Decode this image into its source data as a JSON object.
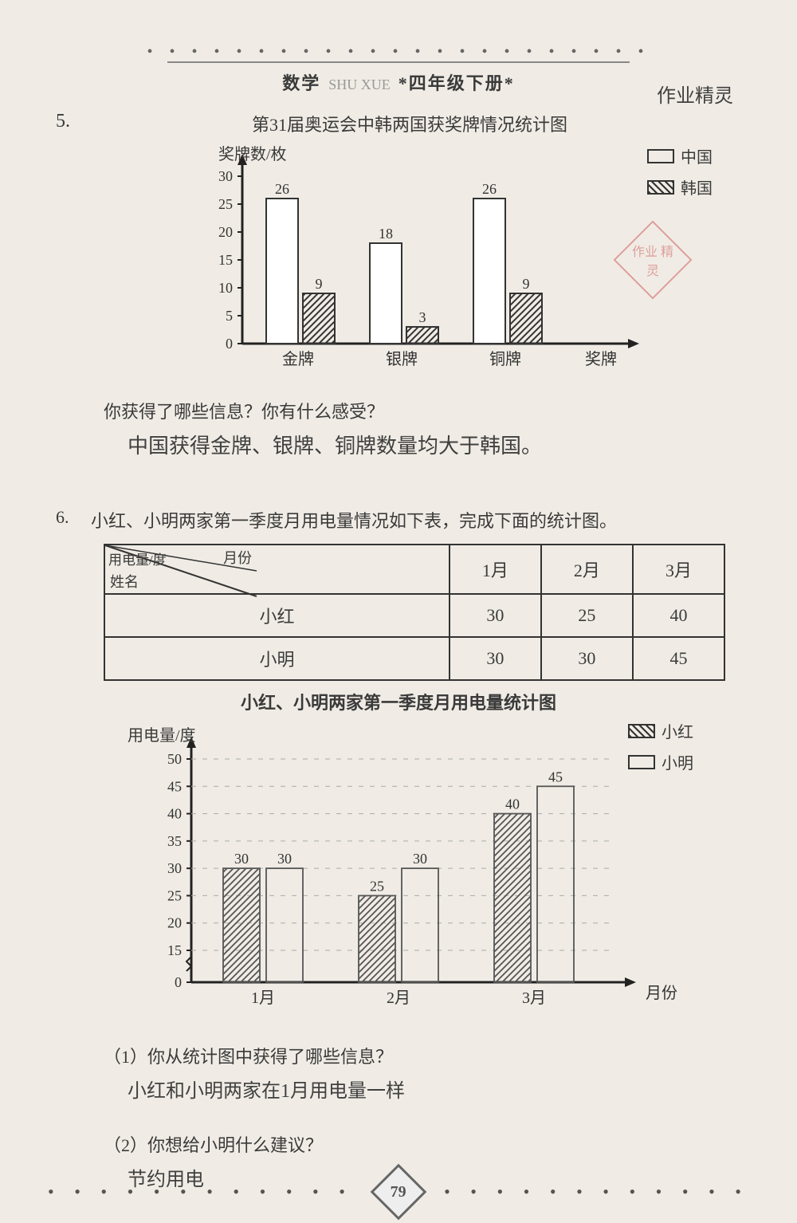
{
  "header": {
    "subject": "数学",
    "subject_pinyin": "SHU XUE",
    "grade": "*四年级下册*",
    "top_annotation": "作业精灵"
  },
  "q5": {
    "number": "5.",
    "title": "第31届奥运会中韩两国获奖牌情况统计图",
    "y_axis_label": "奖牌数/枚",
    "y_ticks": [
      "0",
      "5",
      "10",
      "15",
      "20",
      "25",
      "30"
    ],
    "y_max": 30,
    "categories": [
      "金牌",
      "银牌",
      "铜牌",
      "奖牌"
    ],
    "series": [
      {
        "name": "中国",
        "values": [
          26,
          18,
          26
        ],
        "fill": "#ffffff",
        "hatched": false
      },
      {
        "name": "韩国",
        "values": [
          9,
          3,
          9
        ],
        "fill": "hatched",
        "hatched": true
      }
    ],
    "bar_colors": {
      "china": "#ffffff",
      "korea_hatched": true
    },
    "question": "你获得了哪些信息？你有什么感受？",
    "answer": "中国获得金牌、银牌、铜牌数量均大于韩国。",
    "legend": [
      {
        "swatch": "plain",
        "label": "中国"
      },
      {
        "swatch": "hatched",
        "label": "韩国"
      }
    ],
    "stamp_text": "作业\n精灵"
  },
  "q6": {
    "number": "6.",
    "intro": "小红、小明两家第一季度月用电量情况如下表，完成下面的统计图。",
    "table": {
      "corner_top": "月份",
      "corner_left": "姓名",
      "corner_mid": "用电量/度",
      "cols": [
        "1月",
        "2月",
        "3月"
      ],
      "rows": [
        {
          "name": "小红",
          "values": [
            "30",
            "25",
            "40"
          ]
        },
        {
          "name": "小明",
          "values": [
            "30",
            "30",
            "45"
          ]
        }
      ]
    },
    "chart": {
      "title": "小红、小明两家第一季度月用电量统计图",
      "y_axis_label": "用电量/度",
      "x_axis_label": "月份",
      "y_ticks": [
        "0",
        "15",
        "20",
        "25",
        "30",
        "35",
        "40",
        "45",
        "50"
      ],
      "y_max": 50,
      "categories": [
        "1月",
        "2月",
        "3月"
      ],
      "series": [
        {
          "name": "小红",
          "values": [
            30,
            25,
            40
          ],
          "hatched": true
        },
        {
          "name": "小明",
          "values": [
            30,
            30,
            45
          ],
          "hatched": false
        }
      ],
      "legend": [
        {
          "swatch": "hatched",
          "label": "小红"
        },
        {
          "swatch": "plain",
          "label": "小明"
        }
      ]
    },
    "sub1_q": "（1）你从统计图中获得了哪些信息？",
    "sub1_a": "小红和小明两家在1月用电量一样",
    "sub2_q": "（2）你想给小明什么建议？",
    "sub2_a": "节约用电"
  },
  "page_number": "79",
  "colors": {
    "background": "#f0ece5",
    "axis": "#222222",
    "bar_border": "#333333",
    "text": "#3a3a3a"
  }
}
